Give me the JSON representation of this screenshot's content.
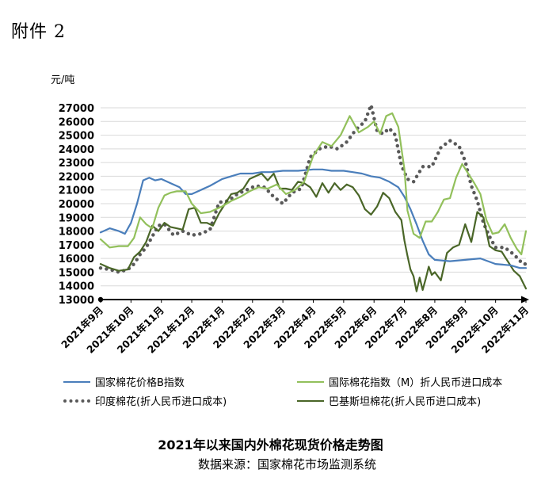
{
  "attachment_label": "附件 2",
  "chart_data": {
    "type": "line",
    "title": "2021年以来国内外棉花现货价格走势图",
    "source": "数据来源：国家棉花市场监测系统",
    "ylabel": "元/吨",
    "ylim": [
      13000,
      27000
    ],
    "yticks": [
      13000,
      14000,
      15000,
      16000,
      17000,
      18000,
      19000,
      20000,
      21000,
      22000,
      23000,
      24000,
      25000,
      26000,
      27000
    ],
    "xlim": [
      0,
      14
    ],
    "categories": [
      "2021年9月",
      "2021年10月",
      "2021年11月",
      "2021年12月",
      "2022年1月",
      "2022年2月",
      "2022年3月",
      "2022年4月",
      "2022年5月",
      "2022年6月",
      "2022年7月",
      "2022年8月",
      "2022年9月",
      "2022年10月",
      "2022年11月"
    ],
    "grid": true,
    "legend_position": "bottom",
    "series": [
      {
        "name": "国家棉花价格B指数",
        "color": "#4a7ebb",
        "style": "solid",
        "x": [
          0,
          0.3,
          0.6,
          0.8,
          1.0,
          1.2,
          1.4,
          1.6,
          1.8,
          2.0,
          2.3,
          2.6,
          2.8,
          3.0,
          3.3,
          3.6,
          4.0,
          4.3,
          4.6,
          5.0,
          5.3,
          5.6,
          6.0,
          6.5,
          7.0,
          7.3,
          7.6,
          8.0,
          8.3,
          8.6,
          8.9,
          9.2,
          9.5,
          9.8,
          10.0,
          10.2,
          10.4,
          10.6,
          10.8,
          11.0,
          11.5,
          12.0,
          12.5,
          13.0,
          13.5,
          13.8,
          14.0
        ],
        "values": [
          17900,
          18200,
          18000,
          17800,
          18600,
          20000,
          21700,
          21900,
          21700,
          21800,
          21500,
          21200,
          20700,
          20700,
          21000,
          21300,
          21800,
          22000,
          22200,
          22200,
          22300,
          22300,
          22400,
          22400,
          22500,
          22500,
          22400,
          22400,
          22300,
          22200,
          22000,
          21900,
          21600,
          21200,
          20500,
          19600,
          18500,
          17300,
          16300,
          15900,
          15800,
          15900,
          16000,
          15600,
          15500,
          15300,
          15300
        ]
      },
      {
        "name": "国际棉花指数（M）折人民币进口成本",
        "color": "#92c05b",
        "style": "solid",
        "x": [
          0,
          0.3,
          0.6,
          0.9,
          1.1,
          1.3,
          1.5,
          1.7,
          1.9,
          2.1,
          2.3,
          2.5,
          2.8,
          3.0,
          3.3,
          3.6,
          4.0,
          4.3,
          4.6,
          4.9,
          5.2,
          5.5,
          5.8,
          6.1,
          6.4,
          6.7,
          7.0,
          7.3,
          7.6,
          7.9,
          8.2,
          8.5,
          8.8,
          9.0,
          9.2,
          9.4,
          9.6,
          9.8,
          10.0,
          10.1,
          10.3,
          10.5,
          10.7,
          10.9,
          11.1,
          11.3,
          11.5,
          11.7,
          11.9,
          12.1,
          12.3,
          12.5,
          12.7,
          12.9,
          13.1,
          13.3,
          13.5,
          13.7,
          13.85,
          14.0
        ],
        "values": [
          17400,
          16800,
          16900,
          16900,
          17500,
          19000,
          18500,
          18200,
          19700,
          20600,
          20800,
          20900,
          20900,
          20000,
          19300,
          19400,
          19800,
          20200,
          20500,
          20900,
          21200,
          21100,
          21400,
          20700,
          21000,
          21600,
          23500,
          24500,
          24200,
          25000,
          26400,
          25200,
          25600,
          26000,
          25100,
          26400,
          26600,
          25600,
          22500,
          19500,
          17800,
          17500,
          18700,
          18700,
          19400,
          20300,
          20400,
          21900,
          22900,
          22200,
          21500,
          20700,
          18800,
          17800,
          17900,
          18500,
          17500,
          16700,
          16300,
          18000
        ]
      },
      {
        "name": "印度棉花(折人民币进口成本)",
        "color": "#595959",
        "style": "dotted",
        "x": [
          0,
          0.3,
          0.6,
          0.9,
          1.1,
          1.3,
          1.5,
          1.7,
          1.9,
          2.1,
          2.4,
          2.7,
          3.0,
          3.3,
          3.6,
          3.9,
          4.2,
          4.5,
          4.8,
          5.1,
          5.4,
          5.7,
          6.0,
          6.3,
          6.6,
          6.9,
          7.2,
          7.5,
          7.8,
          8.1,
          8.4,
          8.7,
          8.9,
          9.1,
          9.3,
          9.5,
          9.7,
          9.9,
          10.1,
          10.3,
          10.6,
          10.9,
          11.2,
          11.5,
          11.8,
          12.0,
          12.2,
          12.4,
          12.6,
          12.8,
          13.0,
          13.3,
          13.6,
          13.9,
          14.0
        ],
        "values": [
          15300,
          15200,
          15000,
          15200,
          15600,
          16300,
          16800,
          17600,
          18400,
          18500,
          17700,
          18000,
          17700,
          17800,
          18100,
          20100,
          20200,
          20700,
          21000,
          21300,
          21200,
          20500,
          20000,
          20800,
          21100,
          23400,
          24000,
          24200,
          24000,
          24500,
          25400,
          26000,
          27200,
          25300,
          25100,
          25500,
          25000,
          22800,
          21800,
          21600,
          22700,
          22700,
          24100,
          24600,
          24200,
          23100,
          21300,
          20200,
          18600,
          17600,
          16800,
          16800,
          16300,
          15600,
          15600
        ]
      },
      {
        "name": "巴基斯坦棉花(折人民币进口成本)",
        "color": "#4a6628",
        "style": "solid",
        "x": [
          0,
          0.3,
          0.6,
          0.9,
          1.1,
          1.3,
          1.5,
          1.7,
          1.9,
          2.1,
          2.3,
          2.5,
          2.7,
          2.9,
          3.1,
          3.3,
          3.5,
          3.7,
          3.9,
          4.1,
          4.3,
          4.5,
          4.7,
          4.9,
          5.1,
          5.3,
          5.5,
          5.7,
          5.9,
          6.1,
          6.3,
          6.5,
          6.7,
          6.9,
          7.1,
          7.3,
          7.5,
          7.7,
          7.9,
          8.1,
          8.3,
          8.5,
          8.7,
          8.9,
          9.1,
          9.3,
          9.5,
          9.7,
          9.9,
          10.0,
          10.1,
          10.2,
          10.3,
          10.4,
          10.5,
          10.6,
          10.7,
          10.8,
          10.9,
          11.0,
          11.2,
          11.4,
          11.6,
          11.8,
          12.0,
          12.2,
          12.4,
          12.6,
          12.8,
          13.0,
          13.2,
          13.4,
          13.6,
          13.8,
          14.0
        ],
        "values": [
          15600,
          15300,
          15100,
          15200,
          16100,
          16500,
          17200,
          18400,
          18000,
          18600,
          18300,
          18200,
          18100,
          19600,
          19700,
          18600,
          18600,
          18400,
          19300,
          20000,
          20700,
          20800,
          21100,
          21800,
          22000,
          22200,
          21700,
          22200,
          21100,
          21100,
          21000,
          21600,
          21500,
          21200,
          20500,
          21500,
          20800,
          21500,
          21000,
          21400,
          21200,
          20600,
          19600,
          19200,
          19800,
          20800,
          20400,
          19400,
          18800,
          17300,
          16200,
          15200,
          14700,
          13600,
          14600,
          13700,
          14500,
          15400,
          14800,
          15000,
          14400,
          16400,
          16800,
          17000,
          18500,
          17200,
          19400,
          19000,
          16900,
          16600,
          16500,
          15800,
          15100,
          14700,
          13800
        ]
      }
    ]
  }
}
